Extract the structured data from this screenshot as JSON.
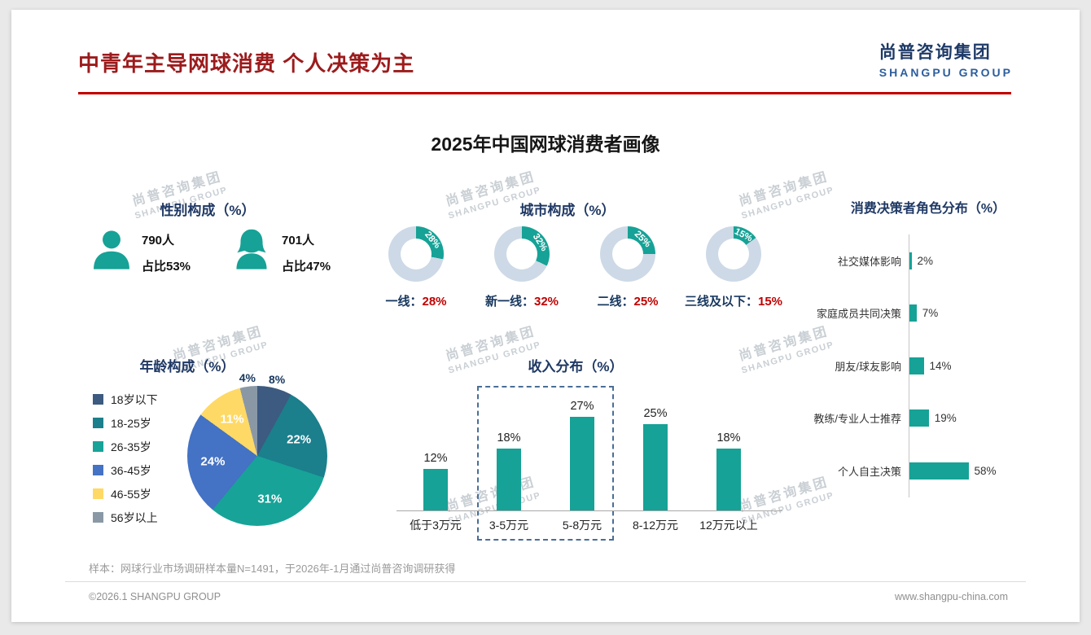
{
  "page": {
    "title": "中青年主导网球消费 个人决策为主",
    "main_title": "2025年中国网球消费者画像",
    "logo": {
      "cn": "尚普咨询集团",
      "en": "SHANGPU GROUP"
    },
    "watermark": {
      "cn": "尚普咨询集团",
      "en": "SHANGPU GROUP"
    },
    "sample_note": "样本：网球行业市场调研样本量N=1491，于2026年-1月通过尚普咨询调研获得",
    "footer": {
      "left": "©2026.1 SHANGPU GROUP",
      "right": "www.shangpu-china.com"
    }
  },
  "colors": {
    "teal": "#16A296",
    "red_accent": "#C00000",
    "navy": "#1F3864",
    "donut_track": "#CDD9E6",
    "highlight_border": "#4A6E96"
  },
  "chart_data": [
    {
      "type": "pictogram",
      "title": "性别构成（%）",
      "items": [
        {
          "icon": "male-icon",
          "count": "790人",
          "share": "占比53%"
        },
        {
          "icon": "female-icon",
          "count": "701人",
          "share": "占比47%"
        }
      ]
    },
    {
      "type": "pie",
      "subtype": "donut-multiples",
      "title": "城市构成（%）",
      "items": [
        {
          "label": "一线：",
          "value": 28,
          "display": "28%"
        },
        {
          "label": "新一线：",
          "value": 32,
          "display": "32%"
        },
        {
          "label": "二线：",
          "value": 25,
          "display": "25%"
        },
        {
          "label": "三线及以下：",
          "value": 15,
          "display": "15%"
        }
      ]
    },
    {
      "type": "bar",
      "orientation": "horizontal",
      "title": "消费决策者角色分布（%）",
      "categories": [
        "社交媒体影响",
        "家庭成员共同决策",
        "朋友/球友影响",
        "教练/专业人士推荐",
        "个人自主决策"
      ],
      "values": [
        2,
        7,
        14,
        19,
        58
      ],
      "value_suffix": "%",
      "xlim": [
        0,
        60
      ]
    },
    {
      "type": "pie",
      "title": "年龄构成（%）",
      "labels": [
        "18岁以下",
        "18-25岁",
        "26-35岁",
        "36-45岁",
        "46-55岁",
        "56岁以上"
      ],
      "values": [
        8,
        22,
        31,
        24,
        11,
        4
      ],
      "colors": [
        "#3D5A80",
        "#1B7F8C",
        "#17A398",
        "#4472C4",
        "#FFD966",
        "#8A98A6"
      ],
      "legend_position": "left"
    },
    {
      "type": "bar",
      "orientation": "vertical",
      "title": "收入分布（%）",
      "categories": [
        "低于3万元",
        "3-5万元",
        "5-8万元",
        "8-12万元",
        "12万元以上"
      ],
      "values": [
        12,
        18,
        27,
        25,
        18
      ],
      "value_suffix": "%",
      "ylim": [
        0,
        30
      ],
      "highlight": {
        "categories_span": [
          "3-5万元",
          "5-8万元"
        ],
        "style": "dashed-box"
      }
    }
  ]
}
